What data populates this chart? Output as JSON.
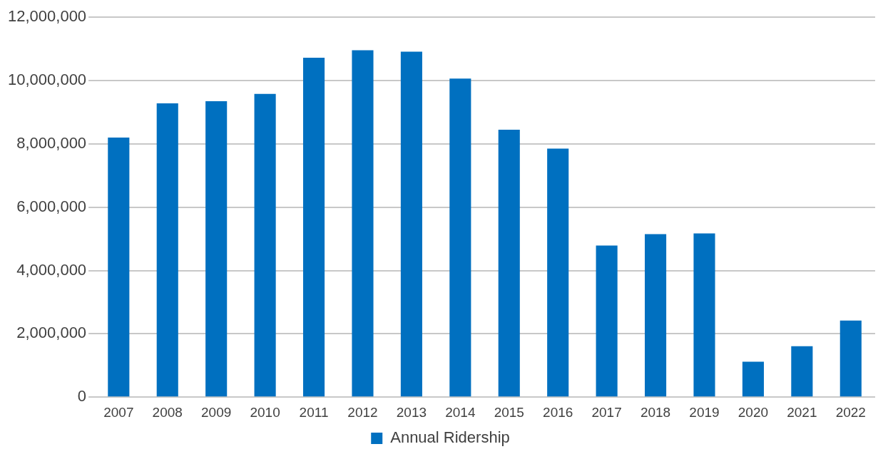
{
  "chart_data": {
    "type": "bar",
    "categories": [
      "2007",
      "2008",
      "2009",
      "2010",
      "2011",
      "2012",
      "2013",
      "2014",
      "2015",
      "2016",
      "2017",
      "2018",
      "2019",
      "2020",
      "2021",
      "2022"
    ],
    "series": [
      {
        "name": "Annual Ridership",
        "color": "#0070c0",
        "values": [
          8200000,
          9280000,
          9350000,
          9580000,
          10720000,
          10960000,
          10910000,
          10060000,
          8450000,
          7850000,
          4790000,
          5150000,
          5170000,
          1120000,
          1610000,
          2420000
        ]
      }
    ],
    "ylim": [
      0,
      12000000
    ],
    "yticks": [
      0,
      {
        "value": 2000000,
        "label": "2,000,000"
      },
      {
        "value": 4000000,
        "label": "4,000,000"
      },
      {
        "value": 6000000,
        "label": "6,000,000"
      },
      {
        "value": 8000000,
        "label": "8,000,000"
      },
      {
        "value": 10000000,
        "label": "10,000,000"
      },
      {
        "value": 12000000,
        "label": "12,000,000"
      }
    ],
    "grid": "y",
    "legend": "bottom"
  }
}
